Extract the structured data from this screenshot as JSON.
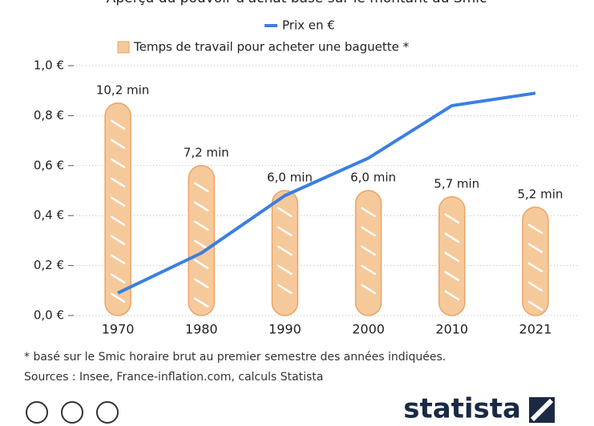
{
  "chart_data": {
    "type": "bar",
    "title": "Aperçu du pouvoir d'achat basé sur le montant du Smic",
    "categories": [
      "1970",
      "1980",
      "1990",
      "2000",
      "2010",
      "2021"
    ],
    "series": [
      {
        "name": "Prix en €",
        "type": "line",
        "color": "#3b7fe0",
        "values": [
          0.09,
          0.25,
          0.48,
          0.63,
          0.84,
          0.89
        ]
      },
      {
        "name": "Temps de travail pour acheter une baguette *",
        "type": "bar",
        "axis": "y2",
        "color": "#f6c99b",
        "values": [
          10.2,
          7.2,
          6.0,
          6.0,
          5.7,
          5.2
        ],
        "value_labels": [
          "10,2 min",
          "7,2 min",
          "6,0 min",
          "6,0 min",
          "5,7 min",
          "5,2 min"
        ]
      }
    ],
    "ylim": [
      0,
      1
    ],
    "yticks": [
      {
        "value": 0,
        "label": "0,0 €"
      },
      {
        "value": 0.2,
        "label": "0,2 €"
      },
      {
        "value": 0.4,
        "label": "0,4 €"
      },
      {
        "value": 0.6,
        "label": "0,6 €"
      },
      {
        "value": 0.8,
        "label": "0,8 €"
      },
      {
        "value": 1,
        "label": "1,0 €"
      }
    ],
    "y2lim": [
      0,
      12
    ],
    "grid": true,
    "footnote": "* basé sur le Smic horaire brut au premier semestre des années indiquées.",
    "source": "Sources : Insee, France-inflation.com, calculs Statista",
    "brand": "statista"
  }
}
